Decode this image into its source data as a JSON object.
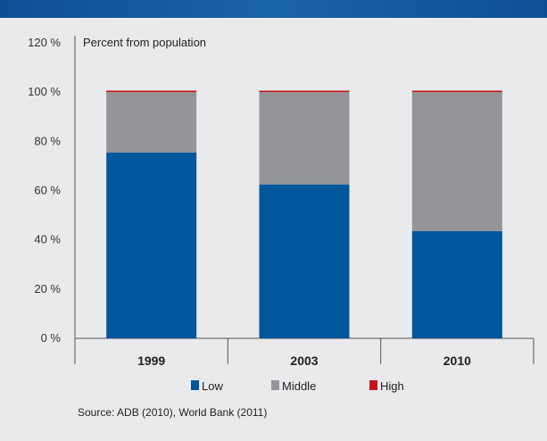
{
  "chart_data": {
    "type": "bar",
    "stacked": true,
    "title": "",
    "ylabel": "Percent from population",
    "xlabel": "",
    "categories": [
      "1999",
      "2003",
      "2010"
    ],
    "series": [
      {
        "name": "Low",
        "values": [
          75.5,
          62.5,
          43.5
        ],
        "color": "#00569b"
      },
      {
        "name": "Middle",
        "values": [
          24.5,
          37.5,
          56.5
        ],
        "color": "#939598"
      },
      {
        "name": "High",
        "values": [
          0.6,
          0.6,
          0.6
        ],
        "color": "#c4161c"
      }
    ],
    "ylim": [
      0,
      120
    ],
    "yticks": [
      0,
      20,
      40,
      60,
      80,
      100,
      120
    ],
    "ytick_labels": [
      "0 %",
      "20 %",
      "40 %",
      "60 %",
      "80 %",
      "100 %",
      "120 %"
    ],
    "grid": false,
    "legend": "bottom"
  },
  "source": "Source: ADB (2010), World Bank (2011)"
}
